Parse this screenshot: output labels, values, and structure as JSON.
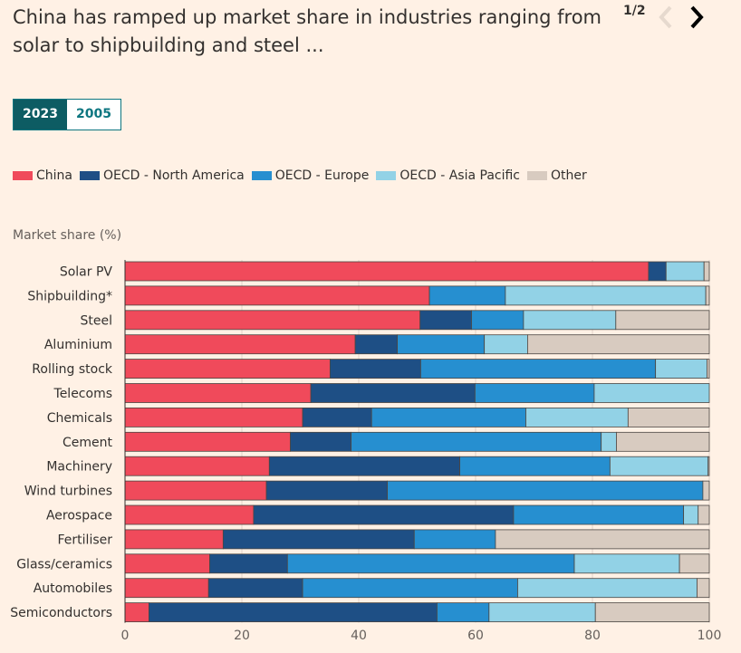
{
  "header": {
    "title": "China has ramped up market share in industries ranging from solar to shipbuilding and steel ...",
    "pager": "1/2"
  },
  "toggle": {
    "options": [
      "2023",
      "2005"
    ],
    "selected": "2023"
  },
  "colors": {
    "China": "#f04a5b",
    "OECD - North America": "#1e4f85",
    "OECD - Europe": "#268fd0",
    "OECD - Asia Pacific": "#92d2e6",
    "Other": "#d8cbc0",
    "background": "#fff1e5",
    "accent": "#0d5c63"
  },
  "chart_data": {
    "type": "bar",
    "orientation": "horizontal",
    "stacked": true,
    "ylabel": "Market share (%)",
    "xlim": [
      0,
      100
    ],
    "xticks": [
      0,
      20,
      40,
      60,
      80,
      100
    ],
    "categories": [
      "Solar PV",
      "Shipbuilding*",
      "Steel",
      "Aluminium",
      "Rolling stock",
      "Telecoms",
      "Chemicals",
      "Cement",
      "Machinery",
      "Wind turbines",
      "Aerospace",
      "Fertiliser",
      "Glass/ceramics",
      "Automobiles",
      "Semiconductors"
    ],
    "series": [
      {
        "name": "China",
        "values": [
          89.6,
          52.1,
          50.5,
          39.4,
          35.1,
          31.8,
          30.4,
          28.3,
          24.7,
          24.2,
          22.0,
          16.8,
          14.5,
          14.3,
          4.1
        ]
      },
      {
        "name": "OECD - North America",
        "values": [
          3.0,
          0,
          8.8,
          7.2,
          15.5,
          28.1,
          11.8,
          10.4,
          32.6,
          20.7,
          44.5,
          32.7,
          13.3,
          16.1,
          49.3
        ]
      },
      {
        "name": "OECD - Europe",
        "values": [
          0,
          13.0,
          8.9,
          14.9,
          40.2,
          20.4,
          26.4,
          42.8,
          25.7,
          54.0,
          29.1,
          13.9,
          49.1,
          36.8,
          8.9
        ]
      },
      {
        "name": "OECD - Asia Pacific",
        "values": [
          6.5,
          34.3,
          15.8,
          7.4,
          8.8,
          19.7,
          17.5,
          2.6,
          16.8,
          0,
          2.5,
          0,
          18.0,
          30.7,
          18.2
        ]
      },
      {
        "name": "Other",
        "values": [
          0.9,
          0.6,
          16.0,
          31.1,
          0.4,
          0,
          13.9,
          15.9,
          0.2,
          1.1,
          1.9,
          36.6,
          5.1,
          2.1,
          19.5
        ]
      }
    ]
  }
}
